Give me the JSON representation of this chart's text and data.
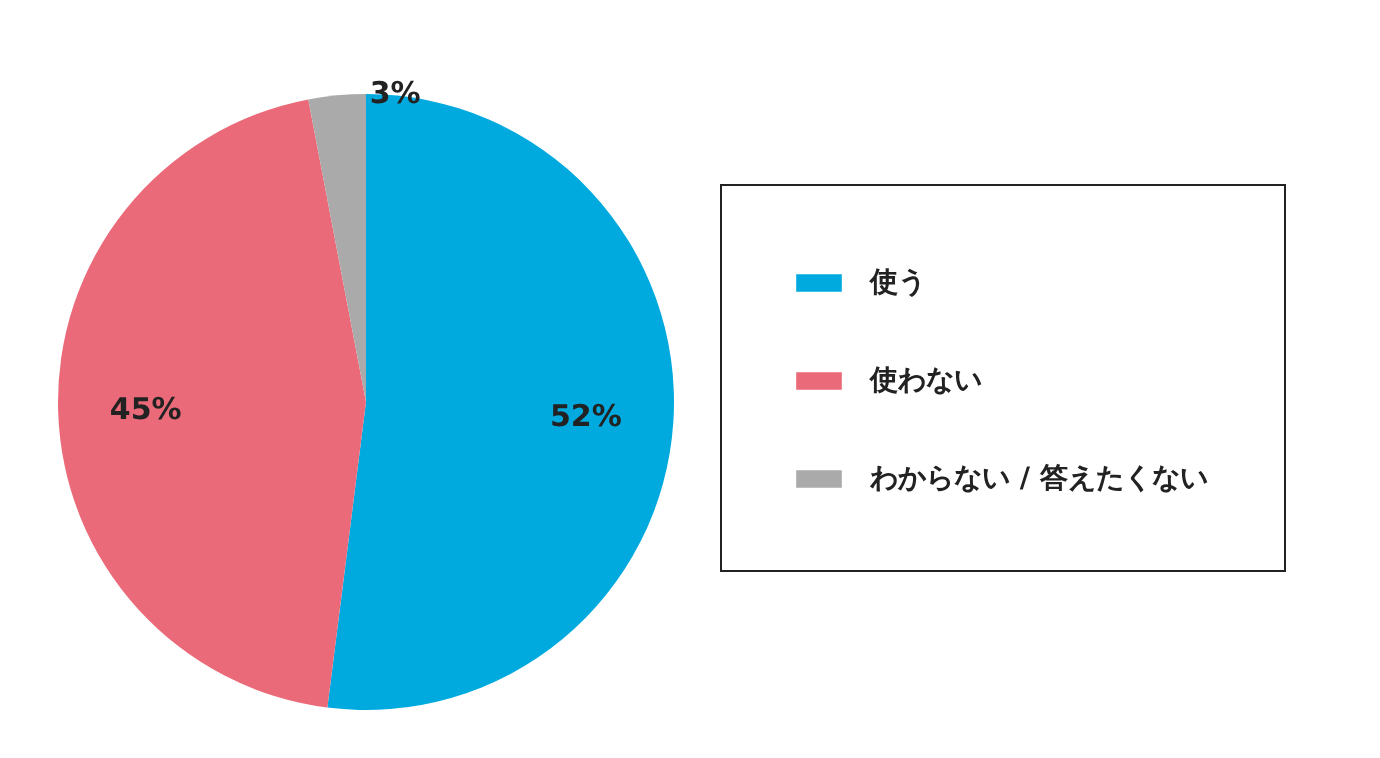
{
  "chart_data": {
    "type": "pie",
    "categories": [
      "使う",
      "使わない",
      "わからない / 答えたくない"
    ],
    "values": [
      52,
      45,
      3
    ],
    "colors": [
      "#00aadf",
      "#eb6a79",
      "#aaaaaa"
    ],
    "value_labels": [
      "52%",
      "45%",
      "3%"
    ],
    "legend": "right"
  }
}
